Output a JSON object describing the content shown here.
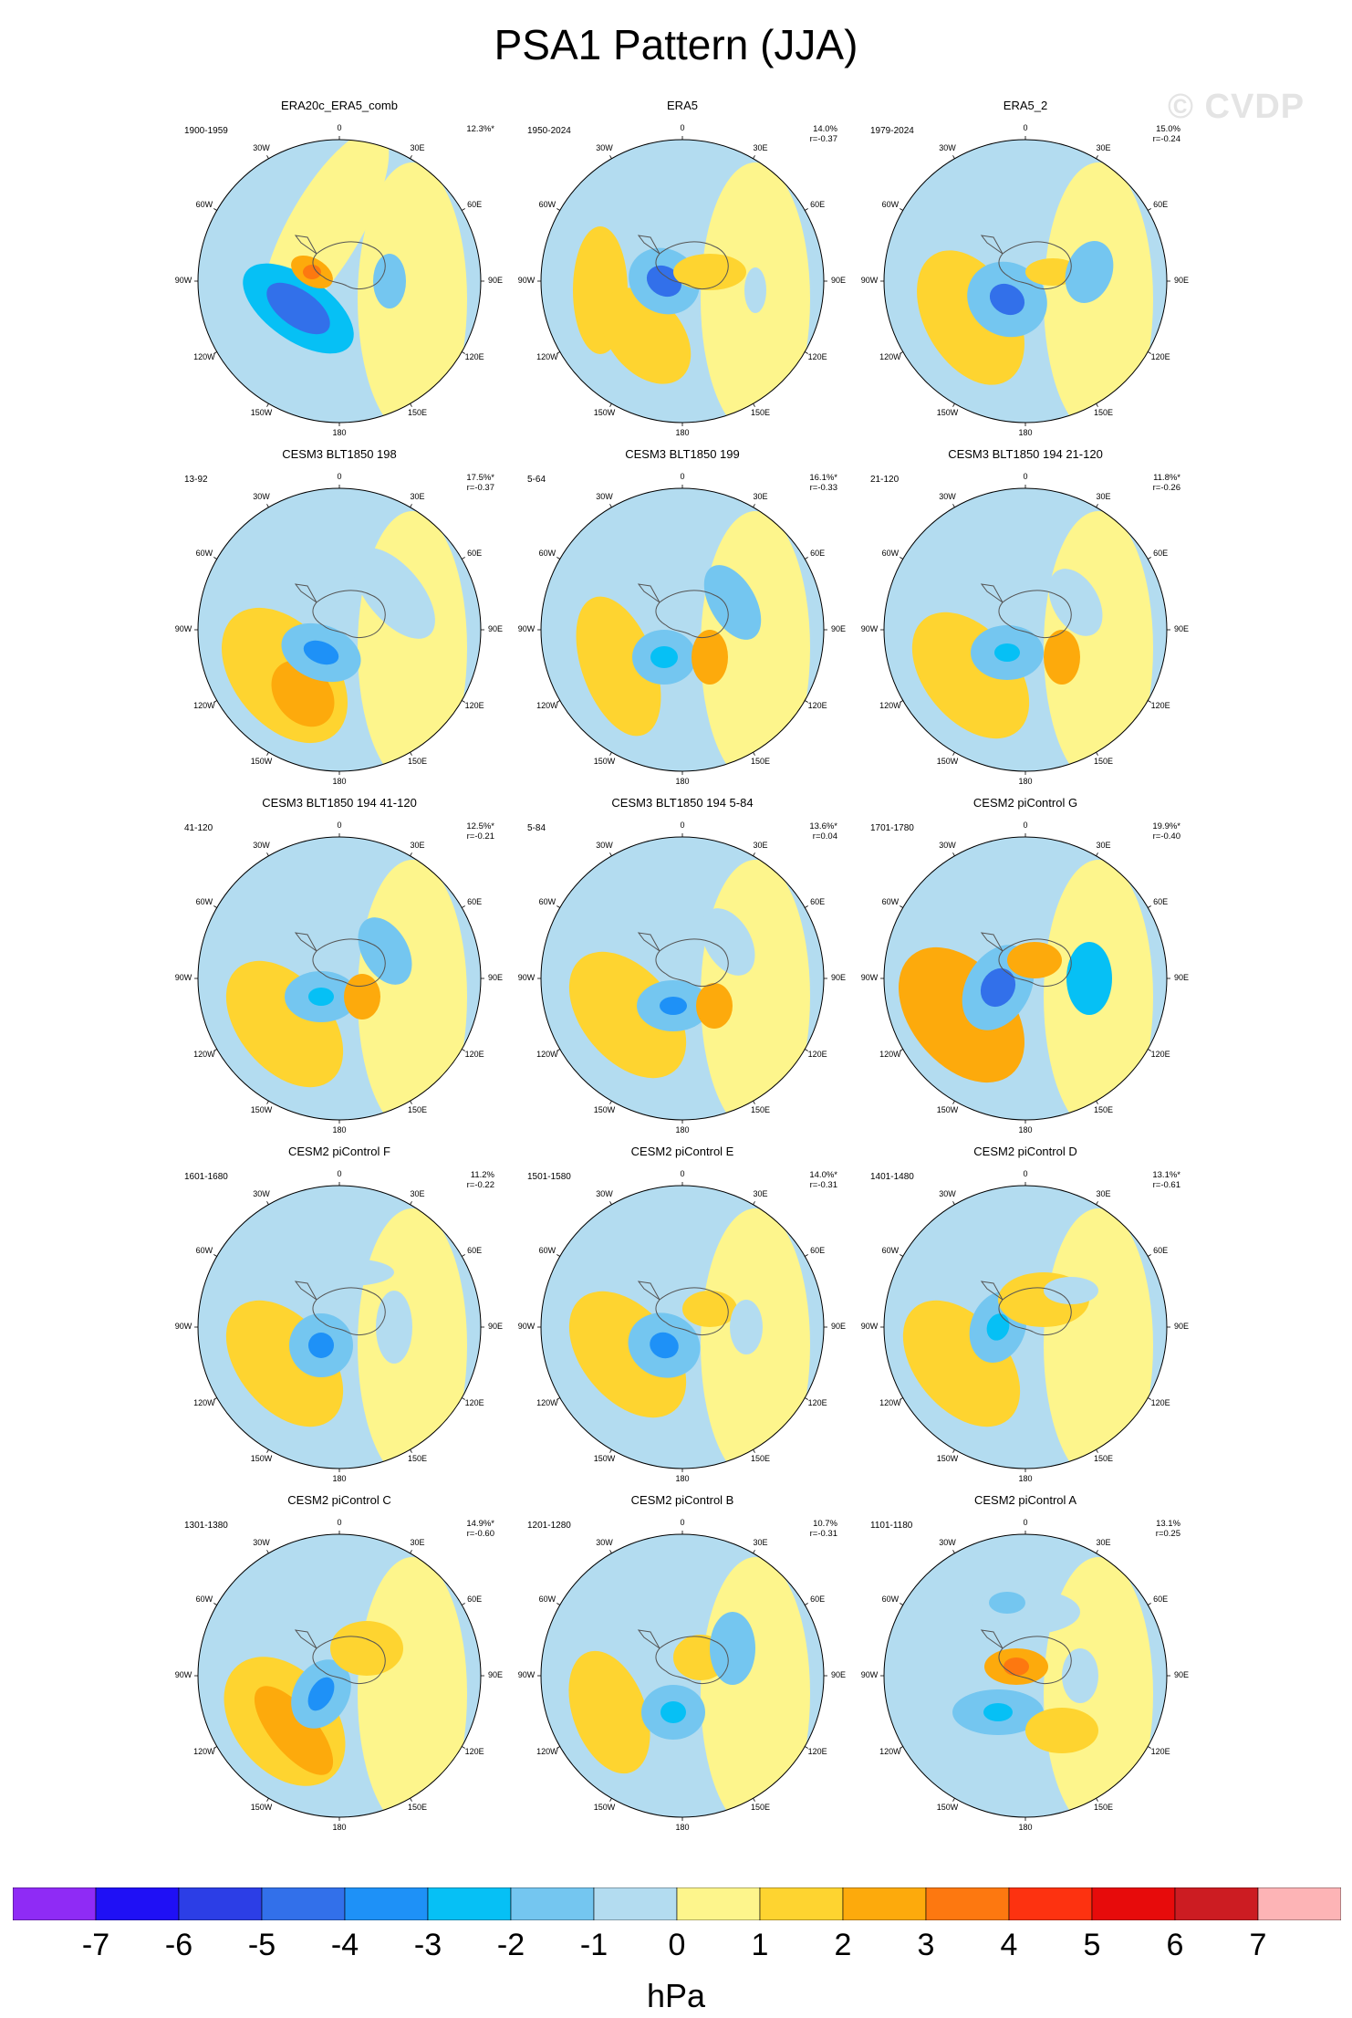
{
  "title": "PSA1 Pattern (JJA)",
  "watermark": "© CVDP",
  "lon_labels": [
    "0",
    "30E",
    "60E",
    "90E",
    "120E",
    "150E",
    "180",
    "150W",
    "120W",
    "90W",
    "60W",
    "30W"
  ],
  "panels": [
    {
      "name": "ERA20c_ERA5_comb",
      "period": "1900-1959",
      "pct": "12.3%*",
      "r": ""
    },
    {
      "name": "ERA5",
      "period": "1950-2024",
      "pct": "14.0%",
      "r": "r=-0.37"
    },
    {
      "name": "ERA5_2",
      "period": "1979-2024",
      "pct": "15.0%",
      "r": "r=-0.24"
    },
    {
      "name": "CESM3 BLT1850 198",
      "period": "13-92",
      "pct": "17.5%*",
      "r": "r=-0.37"
    },
    {
      "name": "CESM3 BLT1850 199",
      "period": "5-64",
      "pct": "16.1%*",
      "r": "r=-0.33"
    },
    {
      "name": "CESM3 BLT1850 194 21-120",
      "period": "21-120",
      "pct": "11.8%*",
      "r": "r=-0.26"
    },
    {
      "name": "CESM3 BLT1850 194 41-120",
      "period": "41-120",
      "pct": "12.5%*",
      "r": "r=-0.21"
    },
    {
      "name": "CESM3 BLT1850 194 5-84",
      "period": "5-84",
      "pct": "13.6%*",
      "r": "r=0.04"
    },
    {
      "name": "CESM2 piControl G",
      "period": "1701-1780",
      "pct": "19.9%*",
      "r": "r=-0.40"
    },
    {
      "name": "CESM2 piControl F",
      "period": "1601-1680",
      "pct": "11.2%",
      "r": "r=-0.22"
    },
    {
      "name": "CESM2 piControl E",
      "period": "1501-1580",
      "pct": "14.0%*",
      "r": "r=-0.31"
    },
    {
      "name": "CESM2 piControl D",
      "period": "1401-1480",
      "pct": "13.1%*",
      "r": "r=-0.61"
    },
    {
      "name": "CESM2 piControl C",
      "period": "1301-1380",
      "pct": "14.9%*",
      "r": "r=-0.60"
    },
    {
      "name": "CESM2 piControl B",
      "period": "1201-1280",
      "pct": "10.7%",
      "r": "r=-0.31"
    },
    {
      "name": "CESM2 piControl A",
      "period": "1101-1180",
      "pct": "13.1%",
      "r": "r=0.25"
    }
  ],
  "colorbar": {
    "labels": [
      "-7",
      "-6",
      "-5",
      "-4",
      "-3",
      "-2",
      "-1",
      "0",
      "1",
      "2",
      "3",
      "4",
      "5",
      "6",
      "7"
    ],
    "colors": [
      "#8f2bf5",
      "#1f10f5",
      "#2c3ee6",
      "#3270ea",
      "#1e91f7",
      "#06c0f5",
      "#74c6f0",
      "#b3dcf0",
      "#fdf58c",
      "#fed430",
      "#fdaa0c",
      "#fd7810",
      "#fd3210",
      "#e70b0b",
      "#cc1c22",
      "#fdb4b6"
    ],
    "unit": "hPa"
  }
}
